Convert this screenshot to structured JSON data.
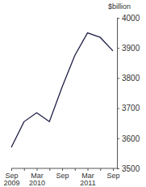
{
  "chart_data": {
    "type": "line",
    "ylabel": "$billion",
    "categories": [
      "Sep 2009",
      null,
      "Mar 2010",
      null,
      "Sep",
      null,
      "Mar 2011",
      null,
      "Sep"
    ],
    "values": [
      3570,
      3655,
      3685,
      3655,
      3770,
      3875,
      3950,
      3935,
      3890
    ],
    "color": "#202048",
    "ylim": [
      3500,
      4000
    ],
    "yticks": [
      3500,
      3600,
      3700,
      3800,
      3900,
      4000
    ]
  }
}
